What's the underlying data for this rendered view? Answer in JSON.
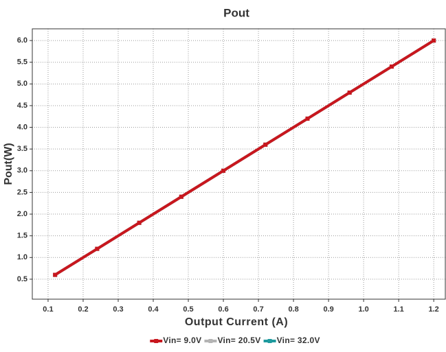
{
  "chart_data": {
    "type": "line",
    "title": "Pout",
    "x_label": "Output Current (A)",
    "y_label": "Pout(W)",
    "x": [
      0.12,
      0.24,
      0.36,
      0.48,
      0.6,
      0.72,
      0.84,
      0.96,
      1.08,
      1.2
    ],
    "series": [
      {
        "name": "Vin= 9.0V",
        "color": "#c8171e",
        "values": [
          0.6,
          1.2,
          1.8,
          2.4,
          3.0,
          3.6,
          4.2,
          4.8,
          5.4,
          6.0
        ]
      },
      {
        "name": "Vin= 20.5V",
        "color": "#b4b4b4",
        "values": [
          0.6,
          1.2,
          1.8,
          2.4,
          3.0,
          3.6,
          4.2,
          4.8,
          5.4,
          6.0
        ]
      },
      {
        "name": "Vin= 32.0V",
        "color": "#1f9a9e",
        "values": [
          0.6,
          1.2,
          1.8,
          2.4,
          3.0,
          3.6,
          4.2,
          4.8,
          5.4,
          6.0
        ]
      }
    ],
    "xlim": [
      0.055,
      1.233
    ],
    "xticks": [
      0.1,
      0.2,
      0.3,
      0.4,
      0.5,
      0.6,
      0.7,
      0.8,
      0.9,
      {
        "value": 1,
        "label": "1.0"
      },
      1.1,
      1.2
    ],
    "ylim": [
      0.04,
      6.27
    ],
    "yticks": [
      0.5,
      {
        "value": 1,
        "label": "1.0"
      },
      1.5,
      {
        "value": 2,
        "label": "2.0"
      },
      2.5,
      {
        "value": 3,
        "label": "3.0"
      },
      3.5,
      {
        "value": 4,
        "label": "4.0"
      },
      4.5,
      {
        "value": 5,
        "label": "5.0"
      },
      5.5,
      {
        "value": 6,
        "label": "6.0"
      }
    ],
    "grid": true,
    "legend": "bottom"
  }
}
